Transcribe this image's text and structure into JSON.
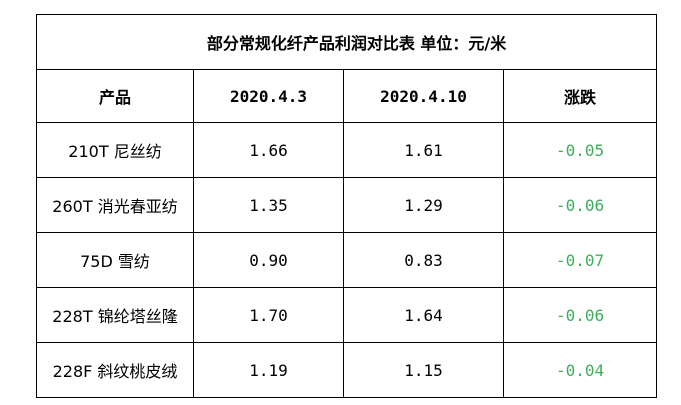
{
  "table": {
    "title": "部分常规化纤产品利润对比表    单位：元/米",
    "headers": [
      "产品",
      "2020.4.3",
      "2020.4.10",
      "涨跌"
    ],
    "rows": [
      {
        "product": "210T 尼丝纺",
        "d1": "1.66",
        "d2": "1.61",
        "change": "-0.05"
      },
      {
        "product": "260T 消光春亚纺",
        "d1": "1.35",
        "d2": "1.29",
        "change": "-0.06"
      },
      {
        "product": "75D 雪纺",
        "d1": "0.90",
        "d2": "0.83",
        "change": "-0.07"
      },
      {
        "product": "228T 锦纶塔丝隆",
        "d1": "1.70",
        "d2": "1.64",
        "change": "-0.06"
      },
      {
        "product": "228F 斜纹桃皮绒",
        "d1": "1.19",
        "d2": "1.15",
        "change": "-0.04"
      }
    ],
    "change_color": "#3fae5c"
  }
}
